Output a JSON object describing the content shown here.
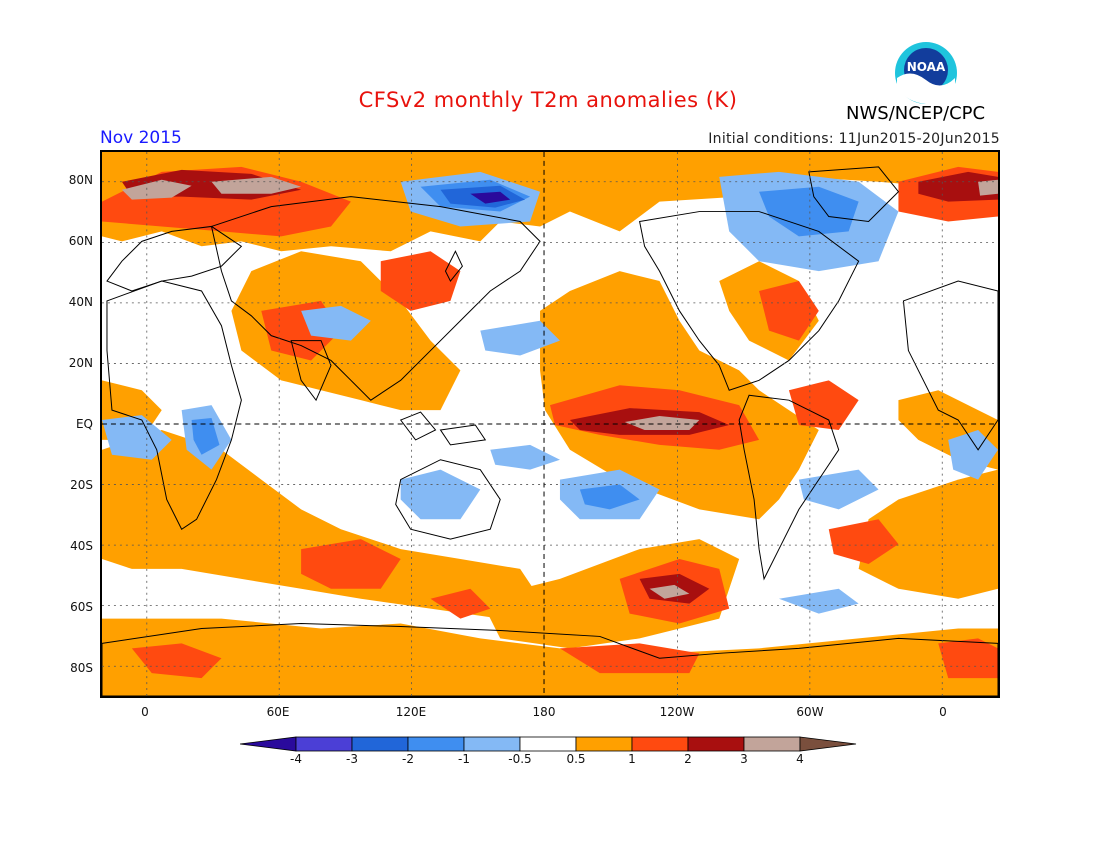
{
  "header": {
    "title": "CFSv2 monthly T2m anomalies (K)",
    "agency": "NWS/NCEP/CPC",
    "month": "Nov 2015",
    "initial_conditions": "Initial conditions: 11Jun2015-20Jun2015"
  },
  "logo": {
    "text": "NOAA",
    "name": "noaa-logo"
  },
  "axes": {
    "lat_labels": [
      "80N",
      "60N",
      "40N",
      "20N",
      "EQ",
      "20S",
      "40S",
      "60S",
      "80S"
    ],
    "lon_labels": [
      "0",
      "60E",
      "120E",
      "180",
      "120W",
      "60W",
      "0"
    ]
  },
  "colorbar": {
    "labels": [
      "-4",
      "-3",
      "-2",
      "-1",
      "-0.5",
      "0.5",
      "1",
      "2",
      "3",
      "4"
    ],
    "colors": [
      "#2a0a9c",
      "#4b3fd6",
      "#2166d9",
      "#3f8ef0",
      "#84b9f5",
      "#ffffff",
      "#ffa000",
      "#ff4a10",
      "#a80f0f",
      "#c2a49a",
      "#7a4f3d"
    ]
  },
  "colors": {
    "title": "#e8120c",
    "month": "#1a1aff",
    "land_outline": "#000000"
  }
}
